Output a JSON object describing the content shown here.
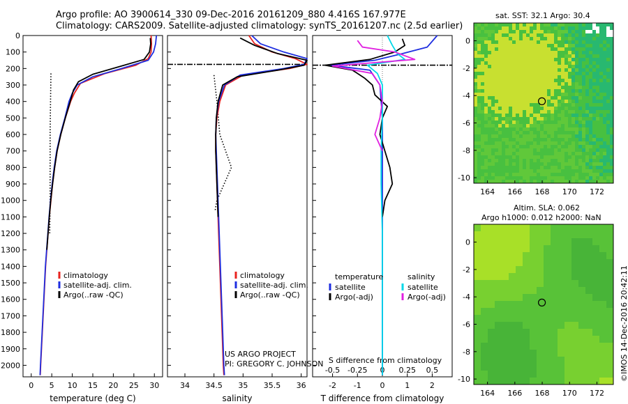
{
  "header": {
    "line1": "Argo profile: AO 3900614_330 09-Dec-2016 20161209_880 4.416S 167.977E",
    "line2": "Climatology: CARS2009. Satellite-adjusted climatology: synTS_20161207.nc (2.5d earlier)"
  },
  "credit": {
    "line1": "US ARGO PROJECT",
    "line2": "PI: GREGORY C. JOHNSON"
  },
  "stamp": "©IMOS 14-Dec-2016 20:42:11",
  "colors": {
    "climatology": "#e8231f",
    "satellite": "#1e2ee0",
    "argo": "#000000",
    "sat_salinity": "#00d8e8",
    "argo_salinity": "#e020e0"
  },
  "chart_data": [
    {
      "type": "line",
      "id": "temperature",
      "xlabel": "temperature (deg C)",
      "xlim": [
        -2,
        32
      ],
      "xticks": [
        0,
        5,
        10,
        15,
        20,
        25,
        30
      ],
      "ylim": [
        2070,
        0
      ],
      "yticks": [
        0,
        100,
        200,
        300,
        400,
        500,
        600,
        700,
        800,
        900,
        1000,
        1100,
        1200,
        1300,
        1400,
        1500,
        1600,
        1700,
        1800,
        1900,
        2000
      ],
      "legend": [
        "climatology",
        "satellite-adj. clim.",
        "Argo(..raw -QC)"
      ],
      "series": [
        {
          "name": "climatology",
          "color": "#e8231f",
          "points": [
            [
              29.2,
              0
            ],
            [
              29.3,
              50
            ],
            [
              29.2,
              100
            ],
            [
              28.5,
              140
            ],
            [
              25.5,
              180
            ],
            [
              18,
              230
            ],
            [
              12,
              290
            ],
            [
              10.5,
              350
            ],
            [
              9.6,
              400
            ],
            [
              8.3,
              500
            ],
            [
              7.2,
              600
            ],
            [
              6.3,
              700
            ],
            [
              5.7,
              800
            ],
            [
              5.2,
              900
            ],
            [
              4.8,
              1000
            ],
            [
              4.4,
              1100
            ],
            [
              4.1,
              1200
            ],
            [
              3.8,
              1300
            ],
            [
              3.5,
              1400
            ],
            [
              3.3,
              1500
            ],
            [
              3.1,
              1600
            ],
            [
              2.9,
              1700
            ],
            [
              2.7,
              1800
            ],
            [
              2.5,
              1900
            ],
            [
              2.3,
              2000
            ],
            [
              2.2,
              2060
            ]
          ]
        },
        {
          "name": "satellite-adj. clim.",
          "color": "#1e2ee0",
          "points": [
            [
              30.5,
              0
            ],
            [
              30.3,
              50
            ],
            [
              29.8,
              100
            ],
            [
              28.5,
              150
            ],
            [
              22,
              200
            ],
            [
              15,
              250
            ],
            [
              11.2,
              300
            ],
            [
              10,
              350
            ],
            [
              9.2,
              400
            ],
            [
              8.2,
              500
            ],
            [
              7.1,
              600
            ],
            [
              6.2,
              700
            ],
            [
              5.6,
              800
            ],
            [
              5.1,
              900
            ],
            [
              4.7,
              1000
            ],
            [
              4.35,
              1100
            ],
            [
              4.05,
              1200
            ],
            [
              3.75,
              1300
            ],
            [
              3.45,
              1400
            ],
            [
              3.25,
              1500
            ],
            [
              3.05,
              1600
            ],
            [
              2.85,
              1700
            ],
            [
              2.65,
              1800
            ],
            [
              2.45,
              1900
            ],
            [
              2.25,
              2000
            ],
            [
              2.15,
              2060
            ]
          ]
        },
        {
          "name": "Argo(..raw -QC)",
          "color": "#000000",
          "points": [
            [
              29.0,
              15
            ],
            [
              29.1,
              50
            ],
            [
              28.8,
              100
            ],
            [
              27.5,
              145
            ],
            [
              22,
              185
            ],
            [
              15,
              235
            ],
            [
              11.5,
              280
            ],
            [
              10.3,
              330
            ],
            [
              9.5,
              400
            ],
            [
              8.3,
              500
            ],
            [
              7.2,
              600
            ],
            [
              6.3,
              700
            ],
            [
              5.7,
              800
            ],
            [
              5.2,
              900
            ],
            [
              4.75,
              1000
            ],
            [
              4.4,
              1100
            ],
            [
              4.1,
              1200
            ],
            [
              3.8,
              1300
            ]
          ]
        }
      ],
      "dotted": {
        "name": "Argo(..raw -QC)",
        "points": [
          [
            4.8,
            230
          ],
          [
            4.7,
            400
          ],
          [
            4.6,
            600
          ],
          [
            4.6,
            800
          ],
          [
            4.6,
            1000
          ],
          [
            4.5,
            1200
          ]
        ]
      }
    },
    {
      "type": "line",
      "id": "salinity",
      "xlabel": "salinity",
      "xlim": [
        33.7,
        36.1
      ],
      "xticks": [
        34,
        34.5,
        35,
        35.5,
        36
      ],
      "ylim": [
        2070,
        0
      ],
      "legend": [
        "climatology",
        "satellite-adj. clim.",
        "Argo(..raw -QC)"
      ],
      "series": [
        {
          "name": "climatology",
          "color": "#e8231f",
          "points": [
            [
              35.1,
              0
            ],
            [
              35.2,
              50
            ],
            [
              35.5,
              100
            ],
            [
              35.9,
              140
            ],
            [
              36.1,
              175
            ],
            [
              35.8,
              200
            ],
            [
              35.0,
              240
            ],
            [
              34.7,
              300
            ],
            [
              34.6,
              400
            ],
            [
              34.55,
              500
            ],
            [
              34.53,
              600
            ],
            [
              34.53,
              700
            ],
            [
              34.54,
              800
            ],
            [
              34.55,
              900
            ],
            [
              34.56,
              1000
            ],
            [
              34.57,
              1100
            ],
            [
              34.58,
              1200
            ],
            [
              34.59,
              1300
            ],
            [
              34.6,
              1400
            ],
            [
              34.61,
              1500
            ],
            [
              34.62,
              1600
            ],
            [
              34.63,
              1700
            ],
            [
              34.64,
              1800
            ],
            [
              34.65,
              1900
            ],
            [
              34.66,
              2000
            ],
            [
              34.67,
              2060
            ]
          ]
        },
        {
          "name": "satellite-adj. clim.",
          "color": "#1e2ee0",
          "points": [
            [
              35.15,
              0
            ],
            [
              35.3,
              50
            ],
            [
              35.7,
              100
            ],
            [
              36.1,
              140
            ],
            [
              36.05,
              175
            ],
            [
              35.7,
              200
            ],
            [
              34.95,
              240
            ],
            [
              34.68,
              300
            ],
            [
              34.58,
              400
            ],
            [
              34.54,
              500
            ],
            [
              34.53,
              600
            ],
            [
              34.54,
              700
            ],
            [
              34.55,
              800
            ],
            [
              34.56,
              900
            ],
            [
              34.57,
              1000
            ],
            [
              34.58,
              1100
            ],
            [
              34.59,
              1200
            ],
            [
              34.6,
              1300
            ],
            [
              34.61,
              1400
            ],
            [
              34.62,
              1500
            ],
            [
              34.63,
              1600
            ],
            [
              34.64,
              1700
            ],
            [
              34.65,
              1800
            ],
            [
              34.66,
              1900
            ],
            [
              34.67,
              2000
            ],
            [
              34.68,
              2060
            ]
          ]
        },
        {
          "name": "Argo(..raw -QC)",
          "color": "#000000",
          "points": [
            [
              34.95,
              15
            ],
            [
              35.2,
              60
            ],
            [
              35.6,
              110
            ],
            [
              36.1,
              150
            ],
            [
              36.05,
              180
            ],
            [
              35.6,
              210
            ],
            [
              34.9,
              250
            ],
            [
              34.65,
              300
            ],
            [
              34.57,
              400
            ],
            [
              34.54,
              500
            ],
            [
              34.53,
              600
            ],
            [
              34.53,
              700
            ],
            [
              34.54,
              800
            ],
            [
              34.55,
              900
            ],
            [
              34.56,
              1000
            ],
            [
              34.57,
              1100
            ]
          ]
        }
      ],
      "dotted": {
        "name": "Argo(..raw -QC)",
        "points": [
          [
            34.5,
            240
          ],
          [
            34.55,
            400
          ],
          [
            34.6,
            600
          ],
          [
            34.8,
            800
          ],
          [
            34.7,
            880
          ],
          [
            34.55,
            1000
          ],
          [
            34.52,
            1060
          ]
        ]
      },
      "dashdot": {
        "points": [
          [
            33.7,
            175
          ],
          [
            36.1,
            175
          ]
        ]
      }
    },
    {
      "type": "line",
      "id": "difference",
      "xlabel": "T difference from climatology",
      "xlabel_top": "S difference from climatology",
      "xlim": [
        -2.8,
        2.8
      ],
      "xticks": [
        -2,
        -1,
        0,
        1,
        2
      ],
      "top_xticks": [
        -0.5,
        -0.25,
        0,
        0.25,
        0.5
      ],
      "top_xtick_labels": [
        "-0.5",
        "-0.25",
        "0",
        "0.25",
        "0.5"
      ],
      "ylim": [
        2070,
        0
      ],
      "legend_temperature": {
        "title": "temperature",
        "items": [
          "satellite",
          "Argo(-adj)"
        ]
      },
      "legend_salinity": {
        "title": "salinity",
        "items": [
          "satellite",
          "Argo(-adj)"
        ]
      },
      "series": [
        {
          "name": "temperature satellite",
          "color": "#1e2ee0",
          "points": [
            [
              2.2,
              0
            ],
            [
              1.8,
              70
            ],
            [
              0.8,
              110
            ],
            [
              -0.3,
              150
            ],
            [
              -2.1,
              180
            ],
            [
              -0.5,
              210
            ],
            [
              -0.1,
              300
            ],
            [
              0,
              500
            ],
            [
              0,
              800
            ],
            [
              0,
              1200
            ],
            [
              0,
              1600
            ],
            [
              0,
              2060
            ]
          ]
        },
        {
          "name": "temperature Argo(-adj)",
          "color": "#000000",
          "points": [
            [
              0.8,
              20
            ],
            [
              0.9,
              60
            ],
            [
              0.5,
              100
            ],
            [
              -0.5,
              145
            ],
            [
              -2.3,
              180
            ],
            [
              -1.2,
              210
            ],
            [
              -0.7,
              260
            ],
            [
              -0.4,
              300
            ],
            [
              -0.3,
              360
            ],
            [
              0.2,
              430
            ],
            [
              0,
              500
            ],
            [
              -0.1,
              600
            ],
            [
              0.1,
              700
            ],
            [
              0.3,
              800
            ],
            [
              0.4,
              900
            ],
            [
              0.1,
              1000
            ],
            [
              0,
              1100
            ]
          ]
        },
        {
          "name": "salinity satellite",
          "color": "#00d8e8",
          "points": [
            [
              0.2,
              0
            ],
            [
              0.4,
              60
            ],
            [
              0.6,
              110
            ],
            [
              0.9,
              145
            ],
            [
              -0.6,
              180
            ],
            [
              -0.2,
              230
            ],
            [
              0,
              300
            ],
            [
              0,
              500
            ],
            [
              -0.05,
              700
            ],
            [
              -0.05,
              900
            ],
            [
              0,
              1200
            ],
            [
              0,
              1600
            ],
            [
              0,
              2060
            ]
          ]
        },
        {
          "name": "salinity Argo(-adj)",
          "color": "#e020e0",
          "points": [
            [
              -1.0,
              30
            ],
            [
              -0.8,
              70
            ],
            [
              0.5,
              100
            ],
            [
              1.3,
              145
            ],
            [
              -2.0,
              185
            ],
            [
              -0.4,
              230
            ],
            [
              -0.1,
              300
            ],
            [
              0,
              400
            ],
            [
              -0.1,
              500
            ],
            [
              -0.3,
              600
            ],
            [
              0,
              700
            ]
          ]
        }
      ],
      "dashdot": {
        "points": [
          [
            -2.8,
            180
          ],
          [
            2.8,
            180
          ]
        ]
      }
    }
  ],
  "maps": [
    {
      "id": "sst-map",
      "title": "sat. SST: 32.1  Argo: 30.4",
      "xlim": [
        163,
        173.2
      ],
      "ylim": [
        -10.4,
        1.3
      ],
      "xticks": [
        164,
        166,
        168,
        170,
        172
      ],
      "yticks": [
        0,
        -2,
        -4,
        -6,
        -8,
        -10
      ],
      "profile_location": [
        167.977,
        -4.416
      ]
    },
    {
      "id": "sla-map",
      "title_line1": "Altim. SLA: 0.062",
      "title_line2": "Argo h1000: 0.012 h2000: NaN",
      "xlim": [
        163,
        173.2
      ],
      "ylim": [
        -10.4,
        1.3
      ],
      "xticks": [
        164,
        166,
        168,
        170,
        172
      ],
      "yticks": [
        0,
        -2,
        -4,
        -6,
        -8,
        -10
      ],
      "profile_location": [
        167.977,
        -4.416
      ]
    }
  ]
}
